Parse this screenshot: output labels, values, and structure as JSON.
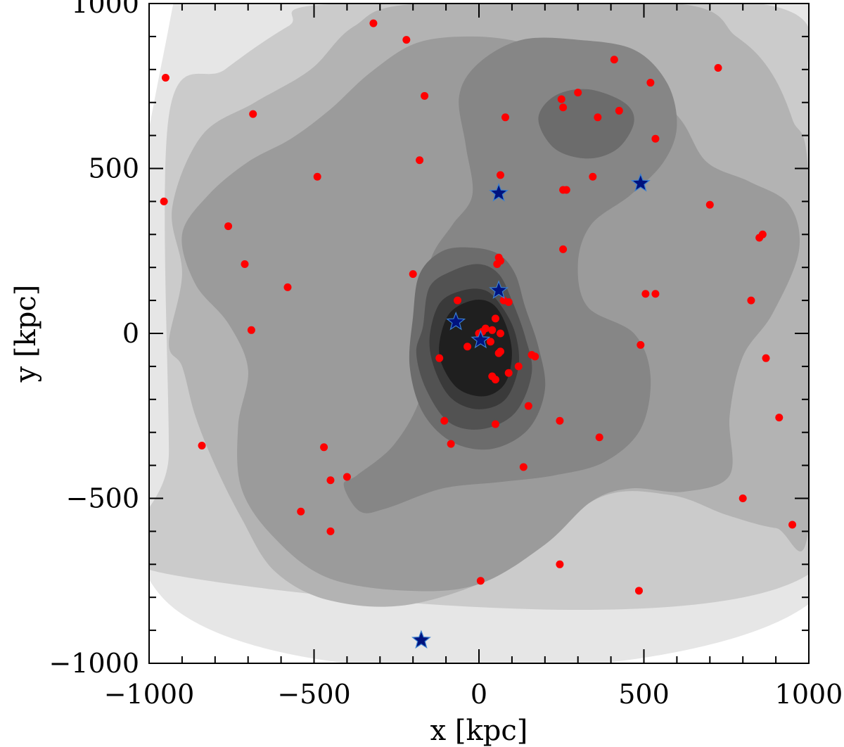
{
  "chart_data": {
    "type": "scatter",
    "title": "",
    "xlabel": "x [kpc]",
    "ylabel": "y [kpc]",
    "xlim": [
      -1000,
      1000
    ],
    "ylim": [
      -1000,
      1000
    ],
    "xticks": [
      "−1000",
      "−500",
      "0",
      "500",
      "1000"
    ],
    "xtick_values": [
      -1000,
      -500,
      0,
      500,
      1000
    ],
    "yticks": [
      "−1000",
      "−500",
      "0",
      "500",
      "1000"
    ],
    "ytick_values": [
      -1000,
      -500,
      0,
      500,
      1000
    ],
    "grid": false,
    "legend": "none",
    "colors": {
      "points": "#ff0000",
      "stars": "#00137f",
      "star_edge": "#3a7fd0",
      "contour_levels": [
        "#e6e6e6",
        "#cbcbcb",
        "#b3b3b3",
        "#9b9b9b",
        "#868686",
        "#6c6c6c",
        "#525252",
        "#3a3a3a",
        "#1f1f1f"
      ]
    },
    "contours": [
      {
        "level": 1,
        "points": [
          [
            -940,
            930
          ],
          [
            -600,
            1000
          ],
          [
            1000,
            1000
          ],
          [
            1000,
            650
          ],
          [
            1000,
            -820
          ],
          [
            -940,
            -820
          ]
        ]
      },
      {
        "level": 2,
        "points": [
          [
            -940,
            660
          ],
          [
            -770,
            800
          ],
          [
            -580,
            930
          ],
          [
            -420,
            1000
          ],
          [
            850,
            1000
          ],
          [
            1000,
            780
          ],
          [
            1000,
            520
          ],
          [
            1000,
            -730
          ],
          [
            -940,
            -730
          ],
          [
            -940,
            -360
          ]
        ]
      },
      {
        "level": 3,
        "points": [
          [
            -940,
            -30
          ],
          [
            -900,
            180
          ],
          [
            -930,
            380
          ],
          [
            -840,
            600
          ],
          [
            -680,
            700
          ],
          [
            -510,
            800
          ],
          [
            -380,
            930
          ],
          [
            -180,
            1000
          ],
          [
            600,
            1000
          ],
          [
            780,
            900
          ],
          [
            880,
            800
          ],
          [
            950,
            650
          ],
          [
            1000,
            450
          ],
          [
            1000,
            -580
          ],
          [
            900,
            -590
          ],
          [
            750,
            -550
          ],
          [
            580,
            -490
          ],
          [
            360,
            -500
          ],
          [
            100,
            -710
          ],
          [
            -200,
            -820
          ],
          [
            -450,
            -810
          ],
          [
            -620,
            -720
          ],
          [
            -720,
            -560
          ],
          [
            -800,
            -400
          ],
          [
            -860,
            -250
          ],
          [
            -900,
            -100
          ]
        ]
      },
      {
        "level": 4,
        "points": [
          [
            -900,
            300
          ],
          [
            -820,
            420
          ],
          [
            -700,
            520
          ],
          [
            -570,
            590
          ],
          [
            -450,
            680
          ],
          [
            -330,
            790
          ],
          [
            -190,
            880
          ],
          [
            -20,
            900
          ],
          [
            140,
            880
          ],
          [
            320,
            820
          ],
          [
            490,
            760
          ],
          [
            610,
            650
          ],
          [
            690,
            520
          ],
          [
            820,
            460
          ],
          [
            940,
            390
          ],
          [
            970,
            250
          ],
          [
            890,
            60
          ],
          [
            800,
            -70
          ],
          [
            760,
            -250
          ],
          [
            760,
            -430
          ],
          [
            620,
            -480
          ],
          [
            460,
            -470
          ],
          [
            340,
            -510
          ],
          [
            200,
            -640
          ],
          [
            0,
            -760
          ],
          [
            -220,
            -780
          ],
          [
            -460,
            -740
          ],
          [
            -620,
            -620
          ],
          [
            -720,
            -470
          ],
          [
            -730,
            -280
          ],
          [
            -700,
            -110
          ],
          [
            -760,
            30
          ],
          [
            -860,
            150
          ]
        ]
      },
      {
        "level": 5,
        "points": [
          [
            -370,
            -430
          ],
          [
            -260,
            -340
          ],
          [
            -180,
            -200
          ],
          [
            -170,
            -50
          ],
          [
            -170,
            120
          ],
          [
            -140,
            240
          ],
          [
            -80,
            330
          ],
          [
            -20,
            420
          ],
          [
            -40,
            570
          ],
          [
            -60,
            720
          ],
          [
            0,
            820
          ],
          [
            130,
            890
          ],
          [
            300,
            890
          ],
          [
            470,
            860
          ],
          [
            570,
            760
          ],
          [
            600,
            630
          ],
          [
            560,
            520
          ],
          [
            460,
            420
          ],
          [
            340,
            330
          ],
          [
            300,
            210
          ],
          [
            330,
            80
          ],
          [
            470,
            0
          ],
          [
            520,
            -130
          ],
          [
            490,
            -290
          ],
          [
            380,
            -390
          ],
          [
            230,
            -430
          ],
          [
            70,
            -450
          ],
          [
            -110,
            -470
          ],
          [
            -280,
            -530
          ],
          [
            -360,
            -540
          ],
          [
            -410,
            -460
          ]
        ]
      },
      {
        "level": 6,
        "points": [
          [
            180,
            650
          ],
          [
            230,
            720
          ],
          [
            330,
            740
          ],
          [
            440,
            700
          ],
          [
            470,
            640
          ],
          [
            420,
            560
          ],
          [
            330,
            530
          ],
          [
            230,
            560
          ]
        ]
      },
      {
        "level": 6,
        "points": [
          [
            -200,
            50
          ],
          [
            -180,
            180
          ],
          [
            -110,
            250
          ],
          [
            -20,
            260
          ],
          [
            60,
            240
          ],
          [
            110,
            180
          ],
          [
            140,
            80
          ],
          [
            180,
            -40
          ],
          [
            200,
            -170
          ],
          [
            150,
            -290
          ],
          [
            40,
            -350
          ],
          [
            -80,
            -330
          ],
          [
            -170,
            -240
          ],
          [
            -210,
            -100
          ]
        ]
      },
      {
        "level": 7,
        "points": [
          [
            -170,
            20
          ],
          [
            -150,
            140
          ],
          [
            -80,
            190
          ],
          [
            0,
            210
          ],
          [
            60,
            180
          ],
          [
            100,
            100
          ],
          [
            140,
            -10
          ],
          [
            160,
            -120
          ],
          [
            110,
            -240
          ],
          [
            10,
            -290
          ],
          [
            -90,
            -270
          ],
          [
            -160,
            -170
          ],
          [
            -190,
            -60
          ]
        ]
      },
      {
        "level": 8,
        "points": [
          [
            -150,
            -20
          ],
          [
            -120,
            90
          ],
          [
            -50,
            130
          ],
          [
            20,
            130
          ],
          [
            70,
            80
          ],
          [
            110,
            0
          ],
          [
            120,
            -100
          ],
          [
            80,
            -200
          ],
          [
            0,
            -230
          ],
          [
            -80,
            -200
          ],
          [
            -130,
            -120
          ]
        ]
      },
      {
        "level": 9,
        "points": [
          [
            -120,
            -30
          ],
          [
            -90,
            60
          ],
          [
            -20,
            100
          ],
          [
            40,
            90
          ],
          [
            80,
            30
          ],
          [
            100,
            -60
          ],
          [
            80,
            -150
          ],
          [
            20,
            -190
          ],
          [
            -60,
            -170
          ],
          [
            -110,
            -100
          ]
        ]
      }
    ],
    "series": [
      {
        "marker": "circle",
        "x": [
          -320,
          -220,
          -950,
          -685,
          -165,
          -180,
          -490,
          -955,
          -760,
          -710,
          -580,
          -690,
          -840,
          -470,
          -450,
          -400,
          -540,
          -450,
          65,
          80,
          250,
          255,
          300,
          255,
          360,
          410,
          425,
          520,
          535,
          725,
          345,
          265,
          60,
          700,
          850,
          860,
          255,
          65,
          55,
          -200,
          -65,
          75,
          90,
          505,
          535,
          825,
          490,
          870,
          910,
          800,
          950,
          245,
          5,
          485,
          -105,
          -85,
          50,
          245,
          365,
          135,
          160,
          150,
          -120,
          20,
          -35,
          50,
          65,
          40,
          0,
          10,
          35,
          65,
          60,
          120,
          170,
          90,
          50,
          40
        ],
        "y": [
          940,
          890,
          775,
          665,
          720,
          525,
          475,
          400,
          325,
          210,
          140,
          10,
          -340,
          -345,
          -445,
          -435,
          -540,
          -600,
          480,
          655,
          710,
          685,
          730,
          435,
          655,
          830,
          675,
          760,
          590,
          805,
          475,
          435,
          230,
          390,
          290,
          300,
          255,
          220,
          210,
          180,
          100,
          100,
          95,
          120,
          120,
          100,
          -35,
          -75,
          -255,
          -500,
          -580,
          -700,
          -750,
          -780,
          -265,
          -335,
          -275,
          -265,
          -315,
          -405,
          -65,
          -220,
          -75,
          15,
          -40,
          45,
          -55,
          10,
          0,
          5,
          -25,
          0,
          -60,
          -100,
          -70,
          -120,
          -140,
          -130
        ]
      },
      {
        "marker": "star",
        "x": [
          60,
          490,
          60,
          -70,
          5,
          -175
        ],
        "y": [
          425,
          455,
          130,
          35,
          -20,
          -930
        ]
      }
    ]
  }
}
